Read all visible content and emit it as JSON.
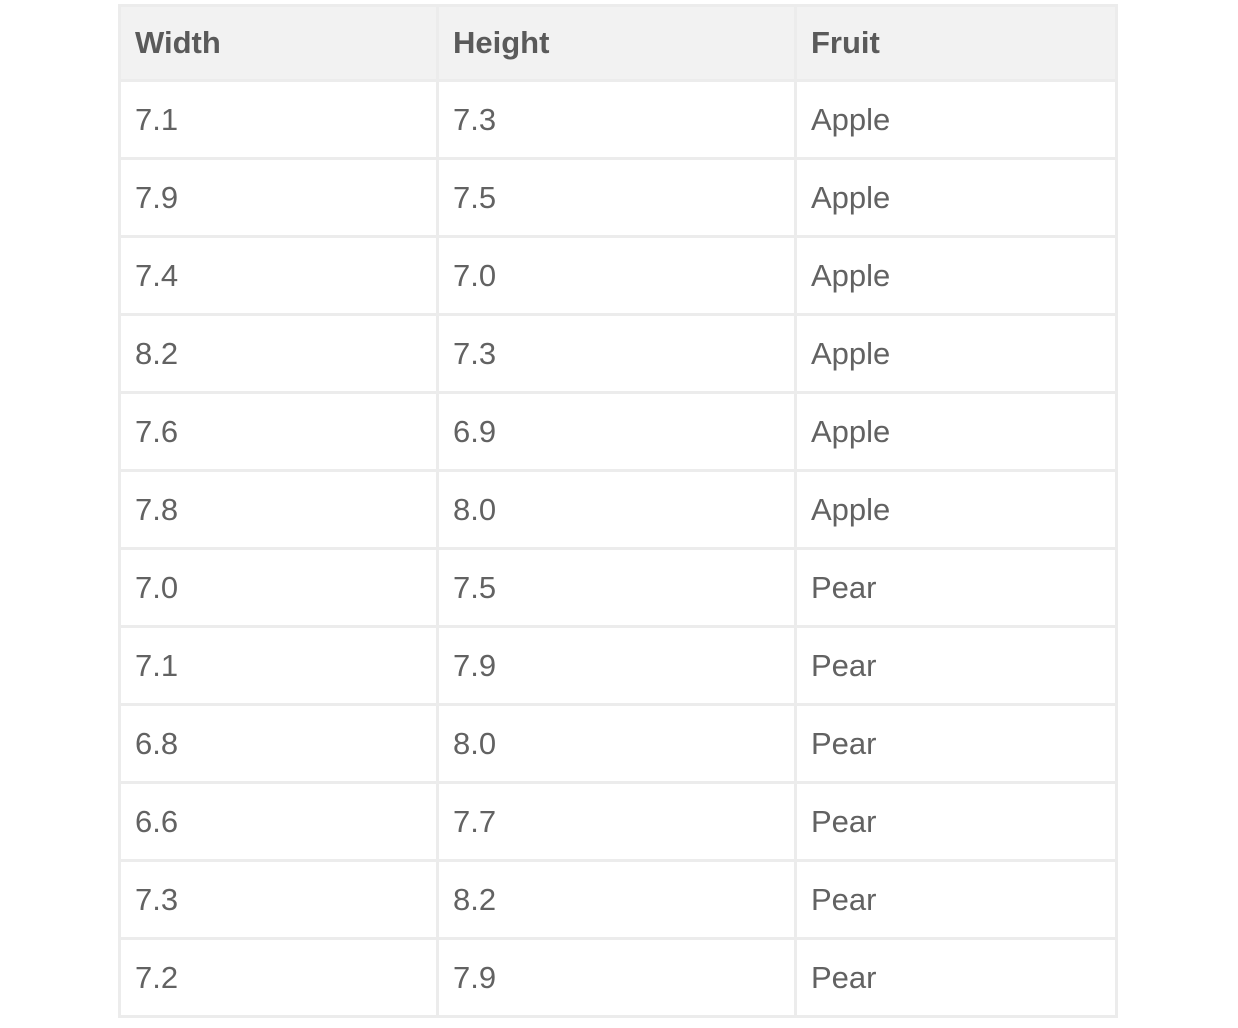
{
  "table": {
    "headers": [
      "Width",
      "Height",
      "Fruit"
    ],
    "rows": [
      [
        "7.1",
        "7.3",
        "Apple"
      ],
      [
        "7.9",
        "7.5",
        "Apple"
      ],
      [
        "7.4",
        "7.0",
        "Apple"
      ],
      [
        "8.2",
        "7.3",
        "Apple"
      ],
      [
        "7.6",
        "6.9",
        "Apple"
      ],
      [
        "7.8",
        "8.0",
        "Apple"
      ],
      [
        "7.0",
        "7.5",
        "Pear"
      ],
      [
        "7.1",
        "7.9",
        "Pear"
      ],
      [
        "6.8",
        "8.0",
        "Pear"
      ],
      [
        "6.6",
        "7.7",
        "Pear"
      ],
      [
        "7.3",
        "8.2",
        "Pear"
      ],
      [
        "7.2",
        "7.9",
        "Pear"
      ]
    ]
  }
}
